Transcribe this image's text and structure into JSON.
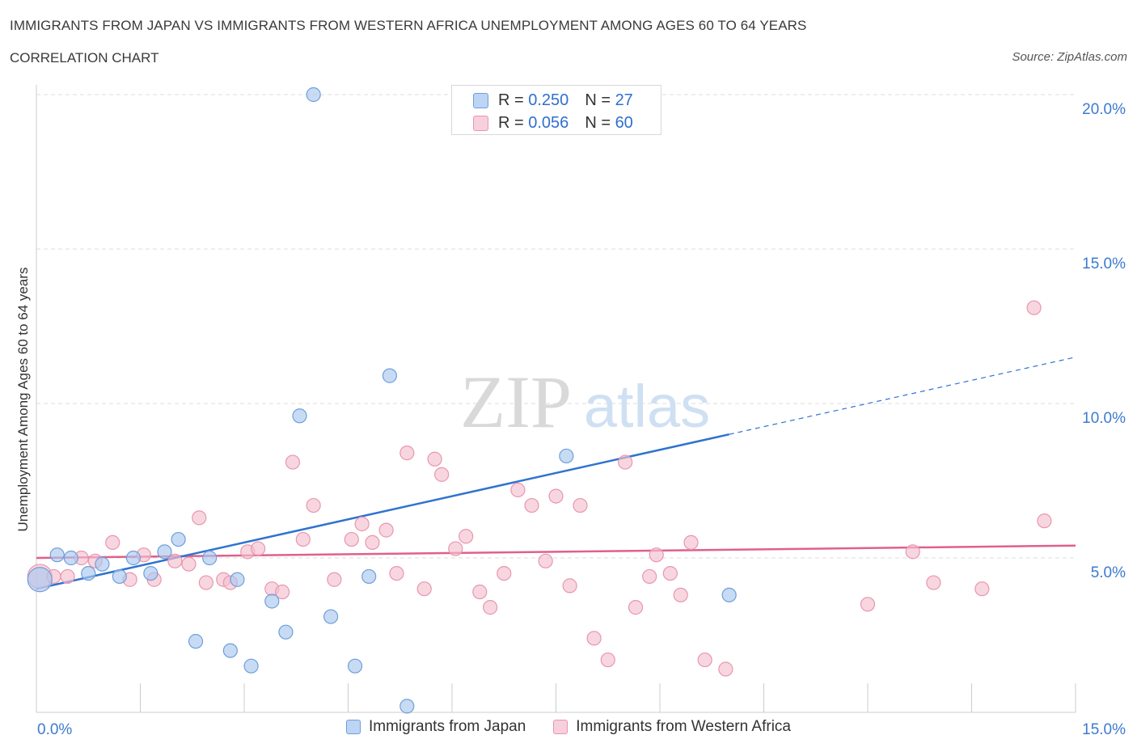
{
  "title": "IMMIGRANTS FROM JAPAN VS IMMIGRANTS FROM WESTERN AFRICA UNEMPLOYMENT AMONG AGES 60 TO 64 YEARS",
  "subtitle": "CORRELATION CHART",
  "source": "Source: ZipAtlas.com",
  "watermark": {
    "zip": "ZIP",
    "atlas": "atlas"
  },
  "stats": {
    "japan": {
      "r_label": "R =",
      "r_value": "0.250",
      "n_label": "N =",
      "n_value": "27"
    },
    "wafrica": {
      "r_label": "R =",
      "r_value": "0.056",
      "n_label": "N =",
      "n_value": "60"
    }
  },
  "legend": {
    "japan": "Immigrants from Japan",
    "wafrica": "Immigrants from Western Africa"
  },
  "colors": {
    "japan_fill": "#aac8f0",
    "japan_stroke": "#6f9fd8",
    "japan_line": "#2f73d0",
    "wafrica_fill": "#f5c0d0",
    "wafrica_stroke": "#e896b0",
    "wafrica_line": "#e0608c",
    "tick_label": "#3d7ad0",
    "grid": "#dddddd"
  },
  "chart_data": {
    "type": "scatter",
    "title": "IMMIGRANTS FROM JAPAN VS IMMIGRANTS FROM WESTERN AFRICA UNEMPLOYMENT AMONG AGES 60 TO 64 YEARS",
    "xlabel": "",
    "ylabel": "Unemployment Among Ages 60 to 64 years",
    "xlim": [
      0,
      15
    ],
    "ylim": [
      0,
      20
    ],
    "x_tick_labels": [
      "0.0%",
      "15.0%"
    ],
    "y_ticks": [
      5,
      10,
      15,
      20
    ],
    "y_tick_labels": [
      "5.0%",
      "10.0%",
      "15.0%",
      "20.0%"
    ],
    "grid": "horizontal dashed",
    "legend_position": "bottom-center",
    "series": [
      {
        "name": "Immigrants from Japan",
        "points": [
          {
            "x": 0.05,
            "y": 4.3,
            "size": "large"
          },
          {
            "x": 0.3,
            "y": 5.1
          },
          {
            "x": 0.5,
            "y": 5.0
          },
          {
            "x": 0.75,
            "y": 4.5
          },
          {
            "x": 0.95,
            "y": 4.8
          },
          {
            "x": 1.2,
            "y": 4.4
          },
          {
            "x": 1.4,
            "y": 5.0
          },
          {
            "x": 1.65,
            "y": 4.5
          },
          {
            "x": 1.85,
            "y": 5.2
          },
          {
            "x": 2.05,
            "y": 5.6
          },
          {
            "x": 2.3,
            "y": 2.3
          },
          {
            "x": 2.5,
            "y": 5.0
          },
          {
            "x": 2.8,
            "y": 2.0
          },
          {
            "x": 2.9,
            "y": 4.3
          },
          {
            "x": 3.1,
            "y": 1.5
          },
          {
            "x": 3.4,
            "y": 3.6
          },
          {
            "x": 3.6,
            "y": 2.6
          },
          {
            "x": 3.8,
            "y": 9.6
          },
          {
            "x": 4.0,
            "y": 20.0
          },
          {
            "x": 4.25,
            "y": 3.1
          },
          {
            "x": 4.6,
            "y": 1.5
          },
          {
            "x": 4.8,
            "y": 4.4
          },
          {
            "x": 5.1,
            "y": 10.9
          },
          {
            "x": 5.35,
            "y": 0.2
          },
          {
            "x": 6.5,
            "y": 19.4
          },
          {
            "x": 7.65,
            "y": 8.3
          },
          {
            "x": 10.0,
            "y": 3.8
          }
        ],
        "trend": {
          "x": [
            0.0,
            10.0
          ],
          "y": [
            4.0,
            9.0
          ],
          "dashed_extension": {
            "x": [
              10.0,
              15.0
            ],
            "y": [
              9.0,
              11.5
            ]
          }
        }
      },
      {
        "name": "Immigrants from Western Africa",
        "points": [
          {
            "x": 0.05,
            "y": 4.4,
            "size": "large"
          },
          {
            "x": 0.25,
            "y": 4.4
          },
          {
            "x": 0.45,
            "y": 4.4
          },
          {
            "x": 0.65,
            "y": 5.0
          },
          {
            "x": 0.85,
            "y": 4.9
          },
          {
            "x": 1.1,
            "y": 5.5
          },
          {
            "x": 1.35,
            "y": 4.3
          },
          {
            "x": 1.55,
            "y": 5.1
          },
          {
            "x": 1.7,
            "y": 4.3
          },
          {
            "x": 2.0,
            "y": 4.9
          },
          {
            "x": 2.2,
            "y": 4.8
          },
          {
            "x": 2.35,
            "y": 6.3
          },
          {
            "x": 2.45,
            "y": 4.2
          },
          {
            "x": 2.7,
            "y": 4.3
          },
          {
            "x": 2.8,
            "y": 4.2
          },
          {
            "x": 3.05,
            "y": 5.2
          },
          {
            "x": 3.2,
            "y": 5.3
          },
          {
            "x": 3.4,
            "y": 4.0
          },
          {
            "x": 3.55,
            "y": 3.9
          },
          {
            "x": 3.7,
            "y": 8.1
          },
          {
            "x": 3.85,
            "y": 5.6
          },
          {
            "x": 4.0,
            "y": 6.7
          },
          {
            "x": 4.3,
            "y": 4.3
          },
          {
            "x": 4.55,
            "y": 5.6
          },
          {
            "x": 4.7,
            "y": 6.1
          },
          {
            "x": 4.85,
            "y": 5.5
          },
          {
            "x": 5.05,
            "y": 5.9
          },
          {
            "x": 5.2,
            "y": 4.5
          },
          {
            "x": 5.35,
            "y": 8.4
          },
          {
            "x": 5.6,
            "y": 4.0
          },
          {
            "x": 5.75,
            "y": 8.2
          },
          {
            "x": 5.85,
            "y": 7.7
          },
          {
            "x": 6.05,
            "y": 5.3
          },
          {
            "x": 6.2,
            "y": 5.7
          },
          {
            "x": 6.4,
            "y": 3.9
          },
          {
            "x": 6.55,
            "y": 3.4
          },
          {
            "x": 6.75,
            "y": 4.5
          },
          {
            "x": 6.95,
            "y": 7.2
          },
          {
            "x": 7.15,
            "y": 6.7
          },
          {
            "x": 7.35,
            "y": 4.9
          },
          {
            "x": 7.5,
            "y": 7.0
          },
          {
            "x": 7.7,
            "y": 4.1
          },
          {
            "x": 7.85,
            "y": 6.7
          },
          {
            "x": 8.05,
            "y": 2.4
          },
          {
            "x": 8.25,
            "y": 1.7
          },
          {
            "x": 8.5,
            "y": 8.1
          },
          {
            "x": 8.65,
            "y": 3.4
          },
          {
            "x": 8.85,
            "y": 4.4
          },
          {
            "x": 8.95,
            "y": 5.1
          },
          {
            "x": 9.15,
            "y": 4.5
          },
          {
            "x": 9.3,
            "y": 3.8
          },
          {
            "x": 9.45,
            "y": 5.5
          },
          {
            "x": 9.65,
            "y": 1.7
          },
          {
            "x": 9.95,
            "y": 1.4
          },
          {
            "x": 12.0,
            "y": 3.5
          },
          {
            "x": 12.65,
            "y": 5.2
          },
          {
            "x": 12.95,
            "y": 4.2
          },
          {
            "x": 13.65,
            "y": 4.0
          },
          {
            "x": 14.4,
            "y": 13.1
          },
          {
            "x": 14.55,
            "y": 6.2
          }
        ],
        "trend": {
          "x": [
            0.0,
            15.0
          ],
          "y": [
            5.0,
            5.4
          ]
        }
      }
    ]
  }
}
